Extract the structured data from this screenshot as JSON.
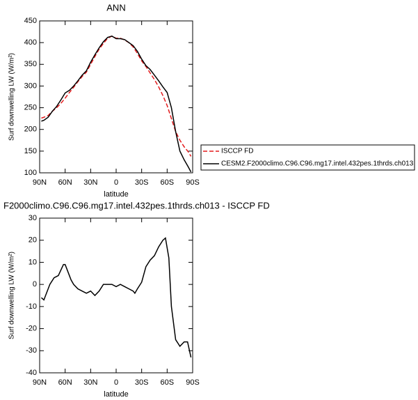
{
  "chart_data": [
    {
      "type": "line",
      "title": "ANN",
      "xlabel": "latitude",
      "ylabel": "Surf downwelling LW (W/m²)",
      "xlim": [
        90,
        -90
      ],
      "xticks": [
        {
          "value": 90,
          "label": "90N"
        },
        {
          "value": 60,
          "label": "60N"
        },
        {
          "value": 30,
          "label": "30N"
        },
        0,
        {
          "value": -30,
          "label": "30S"
        },
        {
          "value": -60,
          "label": "60S"
        },
        {
          "value": -90,
          "label": "90S"
        }
      ],
      "ylim": [
        100,
        450
      ],
      "yticks": [
        100,
        150,
        200,
        250,
        300,
        350,
        400,
        450
      ],
      "x": [
        88,
        85,
        80,
        75,
        70,
        65,
        60,
        55,
        50,
        45,
        40,
        35,
        30,
        25,
        20,
        15,
        10,
        5,
        0,
        -5,
        -10,
        -15,
        -20,
        -25,
        -30,
        -35,
        -40,
        -45,
        -50,
        -55,
        -60,
        -65,
        -70,
        -75,
        -80,
        -85,
        -88
      ],
      "legend": "right",
      "series": [
        {
          "name": "ISCCP FD",
          "color": "#e31a1c",
          "line_style": "dashed",
          "values": [
            226,
            228,
            232,
            242,
            250,
            260,
            272,
            285,
            297,
            310,
            322,
            332,
            350,
            368,
            385,
            398,
            410,
            415,
            410,
            410,
            406,
            400,
            390,
            375,
            358,
            345,
            330,
            315,
            298,
            278,
            255,
            225,
            195,
            175,
            160,
            148,
            138
          ]
        },
        {
          "name": "CESM2.F2000climo.C96.C96.mg17.intel.432pes.1thrds.ch013",
          "color": "#000000",
          "line_style": "solid",
          "values": [
            219,
            221,
            228,
            242,
            253,
            268,
            284,
            290,
            300,
            312,
            325,
            335,
            355,
            372,
            388,
            402,
            412,
            415,
            409,
            409,
            407,
            400,
            393,
            380,
            362,
            347,
            338,
            325,
            312,
            298,
            285,
            250,
            195,
            150,
            130,
            113,
            102
          ]
        }
      ]
    },
    {
      "type": "line",
      "title": "F2000climo.C96.C96.mg17.intel.432pes.1thrds.ch013 - ISCCP FD",
      "xlabel": "latitude",
      "ylabel": "Surf downwelling LW (W/m²)",
      "xlim": [
        90,
        -90
      ],
      "xticks": [
        {
          "value": 90,
          "label": "90N"
        },
        {
          "value": 60,
          "label": "60N"
        },
        {
          "value": 30,
          "label": "30N"
        },
        0,
        {
          "value": -30,
          "label": "30S"
        },
        {
          "value": -60,
          "label": "60S"
        },
        {
          "value": -90,
          "label": "90S"
        }
      ],
      "ylim": [
        -40,
        30
      ],
      "yticks": [
        -40,
        -30,
        -20,
        -10,
        0,
        10,
        20,
        30
      ],
      "x": [
        88,
        85,
        80,
        78,
        73,
        68,
        62,
        60,
        58,
        53,
        50,
        45,
        40,
        35,
        30,
        25,
        20,
        15,
        10,
        5,
        0,
        -5,
        -10,
        -15,
        -20,
        -22,
        -25,
        -30,
        -35,
        -40,
        -45,
        -50,
        -55,
        -58,
        -62,
        -65,
        -70,
        -75,
        -80,
        -84,
        -88
      ],
      "series": [
        {
          "color": "#000000",
          "line_style": "solid",
          "values": [
            -6,
            -7,
            -2,
            0,
            3,
            4,
            9,
            9,
            7,
            2,
            0,
            -2,
            -3,
            -4,
            -3,
            -5,
            -3,
            0,
            0,
            0,
            -1,
            0,
            -1,
            -2,
            -3,
            -4,
            -2,
            1,
            8,
            11,
            13,
            17,
            20,
            21,
            12,
            -10,
            -25,
            -28,
            -26,
            -26,
            -33
          ]
        }
      ]
    }
  ]
}
